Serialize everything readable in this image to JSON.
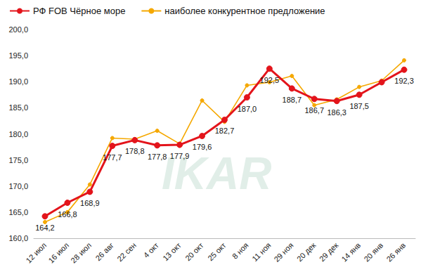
{
  "chart_data": {
    "type": "line",
    "categories": [
      "12 июл",
      "16 июл",
      "28 июл",
      "26 авг",
      "22 сен",
      "4 окт",
      "13 окт",
      "20 окт",
      "25 окт",
      "8 ноя",
      "11 ноя",
      "29 ноя",
      "20 дек",
      "29 дек",
      "14 янв",
      "20 янв",
      "26 янв"
    ],
    "series": [
      {
        "name": "РФ FOB Чёрное море",
        "color": "#e3141b",
        "marker": "circle",
        "line_style": "solid",
        "data_labels": true,
        "values": [
          164.2,
          166.8,
          168.9,
          177.7,
          178.8,
          177.8,
          177.9,
          179.6,
          182.7,
          187.0,
          192.5,
          188.7,
          186.7,
          186.3,
          187.5,
          189.9,
          192.3
        ],
        "value_labels": [
          "164,2",
          "166,8",
          "168,9",
          "177,7",
          "178,8",
          "177,8",
          "177,9",
          "179,6",
          "182,7",
          "187,0",
          "192,5",
          "188,7",
          "186,7",
          "186,3",
          "187,5",
          null,
          "192,3"
        ]
      },
      {
        "name": "наиболее конкурентное предложение",
        "color": "#f5a800",
        "marker": "circle",
        "line_style": "solid",
        "data_labels": false,
        "values": [
          163.1,
          165.0,
          170.3,
          179.2,
          179.0,
          180.6,
          178.1,
          186.4,
          182.3,
          189.3,
          189.9,
          191.1,
          185.5,
          186.6,
          189.0,
          190.2,
          194.1
        ]
      }
    ],
    "ylim": [
      160,
      200
    ],
    "yticks": [
      {
        "value": 160,
        "label": "160,0"
      },
      {
        "value": 165,
        "label": "165,0"
      },
      {
        "value": 170,
        "label": "170,0"
      },
      {
        "value": 175,
        "label": "175,0"
      },
      {
        "value": 180,
        "label": "180,0"
      },
      {
        "value": 185,
        "label": "185,0"
      },
      {
        "value": 190,
        "label": "190,0"
      },
      {
        "value": 195,
        "label": "195,0"
      },
      {
        "value": 200,
        "label": "200,0"
      }
    ],
    "grid": false,
    "legend": "top",
    "annotations": [
      "IKAR"
    ]
  }
}
